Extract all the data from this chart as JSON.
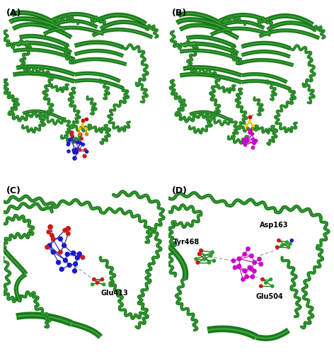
{
  "panel_labels": [
    "(A)",
    "(B)",
    "(C)",
    "(D)"
  ],
  "panel_label_fontsize": 9,
  "panel_label_color": "#000000",
  "background_color": "#ffffff",
  "protein_green_dark": "#1a7a1a",
  "protein_green_mid": "#2d9e2d",
  "protein_green_light": "#5dc85d",
  "atom_blue": "#1a1acc",
  "atom_red": "#cc1a1a",
  "atom_magenta": "#cc00cc",
  "atom_yellow": "#e8c800",
  "atom_orange": "#ff8800",
  "label_C_glu413": "Glu413",
  "label_D_tyr468": "Tyr468",
  "label_D_asp163": "Asp163",
  "label_D_glu504": "Glu504",
  "label_fontsize": 7,
  "fig_width": 4.72,
  "fig_height": 5.0,
  "dpi": 100
}
